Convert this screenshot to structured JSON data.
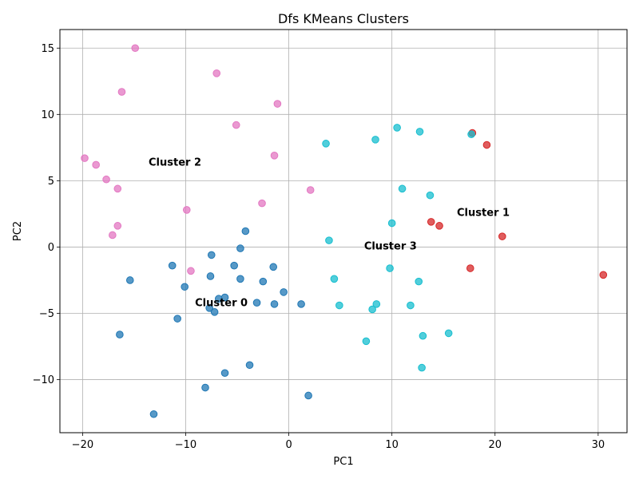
{
  "chart_data": {
    "type": "scatter",
    "title": "Dfs KMeans Clusters",
    "xlabel": "PC1",
    "ylabel": "PC2",
    "xlim": [
      -22.2,
      32.8
    ],
    "ylim": [
      -14,
      16.4
    ],
    "xticks": [
      -20,
      -10,
      0,
      10,
      20,
      30
    ],
    "yticks": [
      -10,
      -5,
      0,
      5,
      10,
      15
    ],
    "grid": true,
    "series": [
      {
        "cluster": 0,
        "color": "#1f77b4",
        "points": [
          [
            -13.1,
            -12.6
          ],
          [
            -8.1,
            -10.6
          ],
          [
            1.9,
            -11.2
          ],
          [
            -6.2,
            -9.5
          ],
          [
            -3.8,
            -8.9
          ],
          [
            -16.4,
            -6.6
          ],
          [
            -10.8,
            -5.4
          ],
          [
            -7.7,
            -4.6
          ],
          [
            -7.2,
            -4.9
          ],
          [
            -6.2,
            -3.8
          ],
          [
            -6.8,
            -3.9
          ],
          [
            -3.1,
            -4.2
          ],
          [
            -1.4,
            -4.3
          ],
          [
            1.2,
            -4.3
          ],
          [
            -0.5,
            -3.4
          ],
          [
            -15.4,
            -2.5
          ],
          [
            -10.1,
            -3.0
          ],
          [
            -4.7,
            -2.4
          ],
          [
            -2.5,
            -2.6
          ],
          [
            -7.6,
            -2.2
          ],
          [
            -11.3,
            -1.4
          ],
          [
            -5.3,
            -1.4
          ],
          [
            -1.5,
            -1.5
          ],
          [
            -7.5,
            -0.6
          ],
          [
            -4.7,
            -0.1
          ],
          [
            -4.2,
            1.2
          ]
        ]
      },
      {
        "cluster": 1,
        "color": "#d62728",
        "points": [
          [
            17.8,
            8.6
          ],
          [
            19.2,
            7.7
          ],
          [
            13.8,
            1.9
          ],
          [
            14.6,
            1.6
          ],
          [
            20.7,
            0.8
          ],
          [
            17.6,
            -1.6
          ],
          [
            30.5,
            -2.1
          ]
        ]
      },
      {
        "cluster": 2,
        "color": "#e377c2",
        "points": [
          [
            -14.9,
            15.0
          ],
          [
            -7.0,
            13.1
          ],
          [
            -16.2,
            11.7
          ],
          [
            -1.1,
            10.8
          ],
          [
            -5.1,
            9.2
          ],
          [
            -1.4,
            6.9
          ],
          [
            -19.8,
            6.7
          ],
          [
            -18.7,
            6.2
          ],
          [
            -17.7,
            5.1
          ],
          [
            -16.6,
            4.4
          ],
          [
            2.1,
            4.3
          ],
          [
            -2.6,
            3.3
          ],
          [
            -9.9,
            2.8
          ],
          [
            -16.6,
            1.6
          ],
          [
            -17.1,
            0.9
          ],
          [
            -9.5,
            -1.8
          ]
        ]
      },
      {
        "cluster": 3,
        "color": "#17becf",
        "points": [
          [
            10.5,
            9.0
          ],
          [
            12.7,
            8.7
          ],
          [
            17.7,
            8.5
          ],
          [
            8.4,
            8.1
          ],
          [
            3.6,
            7.8
          ],
          [
            11.0,
            4.4
          ],
          [
            13.7,
            3.9
          ],
          [
            10.0,
            1.8
          ],
          [
            3.9,
            0.5
          ],
          [
            9.8,
            -1.6
          ],
          [
            4.4,
            -2.4
          ],
          [
            12.6,
            -2.6
          ],
          [
            4.9,
            -4.4
          ],
          [
            8.5,
            -4.3
          ],
          [
            11.8,
            -4.4
          ],
          [
            8.1,
            -4.7
          ],
          [
            15.5,
            -6.5
          ],
          [
            13.0,
            -6.7
          ],
          [
            7.5,
            -7.1
          ],
          [
            12.9,
            -9.1
          ]
        ]
      }
    ],
    "annotations": [
      {
        "text": "Cluster 0",
        "x": -9.1,
        "y": -4.2
      },
      {
        "text": "Cluster 1",
        "x": 16.3,
        "y": 2.6
      },
      {
        "text": "Cluster 2",
        "x": -13.6,
        "y": 6.4
      },
      {
        "text": "Cluster 3",
        "x": 7.3,
        "y": 0.1
      }
    ]
  }
}
